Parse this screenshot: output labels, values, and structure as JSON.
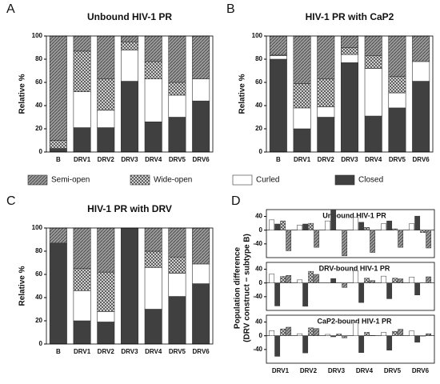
{
  "chart_data": [
    {
      "panel": "A",
      "type": "stacked_bar",
      "title": "Unbound HIV-1 PR",
      "y_label": "Relative %",
      "categories": [
        "B",
        "DRV1",
        "DRV2",
        "DRV3",
        "DRV4",
        "DRV5",
        "DRV6"
      ],
      "ylim": [
        0,
        100
      ],
      "yticks": [
        0,
        20,
        40,
        60,
        80,
        100
      ],
      "series": [
        {
          "name": "Closed",
          "color": "#404040",
          "values": [
            3,
            21,
            21,
            61,
            26,
            30,
            44
          ]
        },
        {
          "name": "Curled",
          "color": "#ffffff",
          "values": [
            0,
            31,
            15,
            27,
            37,
            19,
            19
          ]
        },
        {
          "name": "Wide-open",
          "color": "#e6e6e6",
          "pattern": "cross",
          "values": [
            7,
            35,
            27,
            7,
            15,
            11,
            0
          ]
        },
        {
          "name": "Semi-open",
          "color": "#9a9a9a",
          "pattern": "hatch",
          "values": [
            90,
            13,
            37,
            5,
            22,
            40,
            37
          ]
        }
      ]
    },
    {
      "panel": "B",
      "type": "stacked_bar",
      "title": "HIV-1 PR with CaP2",
      "y_label": "Relative %",
      "categories": [
        "B",
        "DRV1",
        "DRV2",
        "DRV3",
        "DRV4",
        "DRV5",
        "DRV6"
      ],
      "ylim": [
        0,
        100
      ],
      "yticks": [
        0,
        20,
        40,
        60,
        80,
        100
      ],
      "series": [
        {
          "color": "#404040",
          "values": [
            80,
            20,
            30,
            77,
            31,
            38,
            61
          ]
        },
        {
          "color": "#ffffff",
          "values": [
            3,
            18,
            9,
            7,
            41,
            13,
            17
          ]
        },
        {
          "color": "#e6e6e6",
          "pattern": "cross",
          "values": [
            1,
            21,
            24,
            6,
            11,
            14,
            0
          ]
        },
        {
          "color": "#9a9a9a",
          "pattern": "hatch",
          "values": [
            16,
            41,
            37,
            10,
            17,
            35,
            22
          ]
        }
      ]
    },
    {
      "panel": "C",
      "type": "stacked_bar",
      "title": "HIV-1 PR with DRV",
      "y_label": "Relative %",
      "categories": [
        "B",
        "DRV1",
        "DRV2",
        "DRV3",
        "DRV4",
        "DRV5",
        "DRV6"
      ],
      "ylim": [
        0,
        100
      ],
      "yticks": [
        0,
        20,
        40,
        60,
        80,
        100
      ],
      "series": [
        {
          "color": "#404040",
          "values": [
            87,
            20,
            19,
            100,
            30,
            41,
            52
          ]
        },
        {
          "color": "#ffffff",
          "values": [
            0,
            26,
            9,
            0,
            36,
            20,
            17
          ]
        },
        {
          "color": "#e6e6e6",
          "pattern": "cross",
          "values": [
            0,
            19,
            34,
            0,
            14,
            14,
            0
          ]
        },
        {
          "color": "#9a9a9a",
          "pattern": "hatch",
          "values": [
            13,
            35,
            38,
            0,
            20,
            25,
            31
          ]
        }
      ]
    },
    {
      "panel": "D",
      "type": "grouped_bar_panels",
      "y_label": [
        "Population difference",
        "(DRV construct − subtype B)"
      ],
      "categories": [
        "DRV1",
        "DRV2",
        "DRV3",
        "DRV4",
        "DRV5",
        "DRV6"
      ],
      "ylim": [
        -80,
        60
      ],
      "yticks": [
        -40,
        0,
        40
      ],
      "subplots": [
        {
          "title": "Unbound HIV-1 PR",
          "series": [
            {
              "color": "#ffffff",
              "values": [
                30,
                15,
                27,
                37,
                19,
                19
              ]
            },
            {
              "color": "#404040",
              "values": [
                18,
                18,
                58,
                23,
                27,
                41
              ]
            },
            {
              "color": "#dcdcdc",
              "pattern": "cross",
              "values": [
                27,
                20,
                0,
                8,
                4,
                -7
              ]
            },
            {
              "color": "#9a9a9a",
              "pattern": "hatch",
              "values": [
                -60,
                -50,
                -75,
                -65,
                -50,
                -52
              ]
            }
          ]
        },
        {
          "title": "DRV-bound HIV-1 PR",
          "series": [
            {
              "color": "#ffffff",
              "values": [
                26,
                9,
                0,
                36,
                20,
                17
              ]
            },
            {
              "color": "#404040",
              "values": [
                -67,
                -68,
                13,
                -57,
                -46,
                -35
              ]
            },
            {
              "color": "#dcdcdc",
              "pattern": "cross",
              "values": [
                19,
                34,
                0,
                14,
                14,
                0
              ]
            },
            {
              "color": "#9a9a9a",
              "pattern": "hatch",
              "values": [
                22,
                25,
                -13,
                7,
                12,
                18
              ]
            }
          ]
        },
        {
          "title": "CaP2-bound HIV-1 PR",
          "series": [
            {
              "color": "#ffffff",
              "values": [
                15,
                6,
                4,
                38,
                10,
                14
              ]
            },
            {
              "color": "#404040",
              "values": [
                -60,
                -50,
                -3,
                -49,
                -42,
                -19
              ]
            },
            {
              "color": "#dcdcdc",
              "pattern": "cross",
              "values": [
                20,
                23,
                5,
                10,
                13,
                -1
              ]
            },
            {
              "color": "#9a9a9a",
              "pattern": "hatch",
              "values": [
                25,
                21,
                -6,
                1,
                19,
                6
              ]
            }
          ]
        }
      ]
    }
  ]
}
